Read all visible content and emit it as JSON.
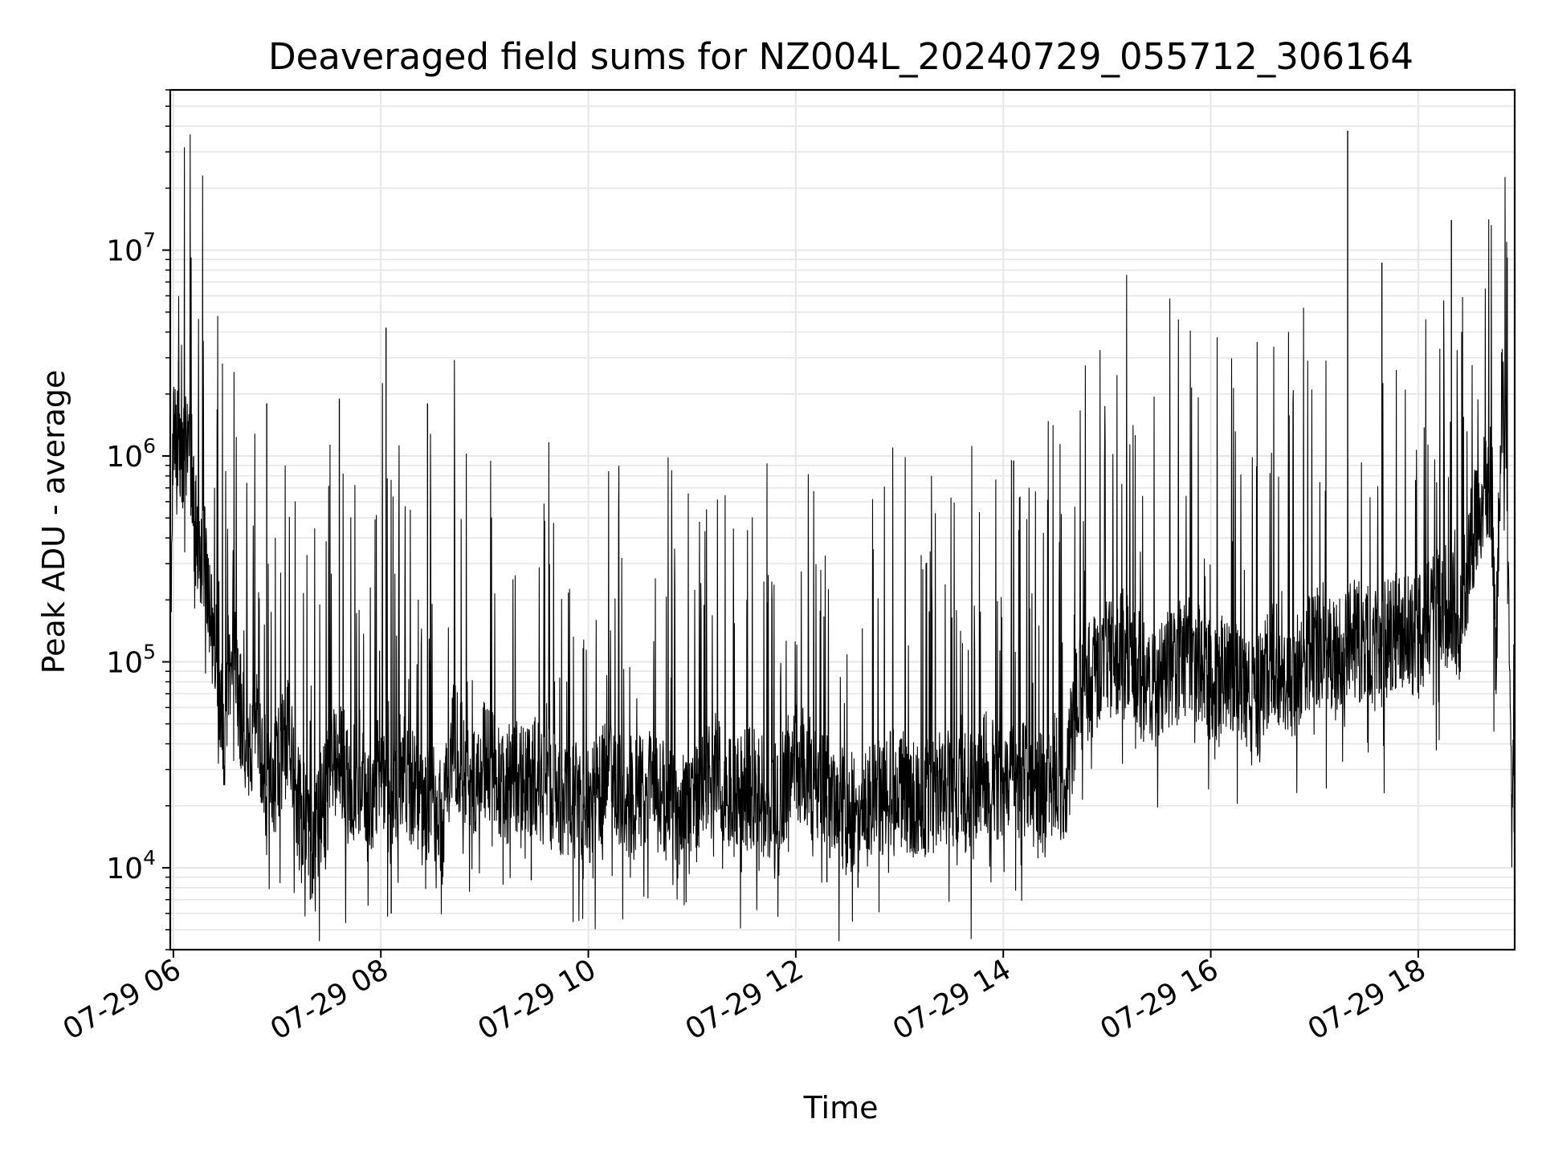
{
  "chart_data": {
    "type": "line",
    "title": "Deaveraged field sums for NZ004L_20240729_055712_306164",
    "xlabel": "Time",
    "ylabel": "Peak ADU - average",
    "yscale": "log",
    "grid": true,
    "legend": "none",
    "line_color": "#000000",
    "grid_color": "#e6e6e6",
    "x_unit": "hours (local time-of-day on 2024-07-29)",
    "xlim": [
      5.97,
      18.93
    ],
    "ylim": [
      4000,
      60000000
    ],
    "x_ticks": [
      {
        "value": 6,
        "label": "07-29 06"
      },
      {
        "value": 8,
        "label": "07-29 08"
      },
      {
        "value": 10,
        "label": "07-29 10"
      },
      {
        "value": 12,
        "label": "07-29 12"
      },
      {
        "value": 14,
        "label": "07-29 14"
      },
      {
        "value": 16,
        "label": "07-29 16"
      },
      {
        "value": 18,
        "label": "07-29 18"
      }
    ],
    "y_ticks": [
      {
        "value": 10000,
        "base": "10",
        "exp": "4"
      },
      {
        "value": 100000,
        "base": "10",
        "exp": "5"
      },
      {
        "value": 1000000,
        "base": "10",
        "exp": "6"
      },
      {
        "value": 10000000,
        "base": "10",
        "exp": "7"
      }
    ],
    "series": [
      {
        "x": [
          5.98,
          6.0,
          6.05,
          6.1,
          6.15,
          6.2,
          6.3,
          6.4,
          6.45,
          6.5,
          6.55,
          6.6,
          6.7,
          6.8,
          6.9,
          7.0,
          7.1,
          7.2,
          7.3,
          7.35,
          7.4,
          7.5,
          7.6,
          7.7,
          7.8,
          7.9,
          8.0,
          8.05,
          8.1,
          8.2,
          8.3,
          8.4,
          8.5,
          8.6,
          8.7,
          8.8,
          8.9,
          9.0,
          9.2,
          9.4,
          9.6,
          9.8,
          10.0,
          10.2,
          10.4,
          10.6,
          10.8,
          11.0,
          11.2,
          11.4,
          11.6,
          11.8,
          12.0,
          12.2,
          12.4,
          12.6,
          12.8,
          13.0,
          13.2,
          13.4,
          13.6,
          13.8,
          14.0,
          14.2,
          14.4,
          14.5,
          14.6,
          14.7,
          14.8,
          15.0,
          15.2,
          15.4,
          15.6,
          15.8,
          16.0,
          16.2,
          16.4,
          16.6,
          16.8,
          17.0,
          17.2,
          17.4,
          17.6,
          17.8,
          18.0,
          18.2,
          18.4,
          18.5,
          18.6,
          18.7,
          18.75,
          18.8,
          18.85,
          18.9,
          18.93
        ],
        "y": [
          150000,
          1700000,
          1200000,
          900000,
          1500000,
          500000,
          300000,
          120000,
          70000,
          40000,
          150000,
          90000,
          35000,
          60000,
          25000,
          30000,
          45000,
          20000,
          15000,
          13000,
          18000,
          25000,
          40000,
          22000,
          30000,
          18000,
          35000,
          25000,
          20000,
          30000,
          25000,
          18000,
          22000,
          16000,
          45000,
          30000,
          28000,
          35000,
          25000,
          30000,
          24000,
          22000,
          20000,
          28000,
          22000,
          25000,
          20000,
          18000,
          30000,
          22000,
          25000,
          20000,
          35000,
          25000,
          20000,
          18000,
          22000,
          25000,
          20000,
          25000,
          22000,
          30000,
          25000,
          28000,
          22000,
          30000,
          25000,
          60000,
          80000,
          100000,
          120000,
          70000,
          90000,
          110000,
          80000,
          90000,
          60000,
          100000,
          85000,
          120000,
          100000,
          130000,
          110000,
          150000,
          130000,
          200000,
          160000,
          350000,
          600000,
          800000,
          90000,
          2000000,
          1000000,
          30000,
          20000
        ]
      }
    ],
    "spikes": [
      {
        "x": 6.05,
        "y": 2900000
      },
      {
        "x": 6.9,
        "y": 1800000
      },
      {
        "x": 7.6,
        "y": 1900000
      },
      {
        "x": 8.05,
        "y": 4200000
      },
      {
        "x": 8.45,
        "y": 1800000
      },
      {
        "x": 14.1,
        "y": 950000
      },
      {
        "x": 17.32,
        "y": 38000000
      },
      {
        "x": 17.65,
        "y": 8700000
      },
      {
        "x": 18.32,
        "y": 14000000
      },
      {
        "x": 18.42,
        "y": 4000000
      },
      {
        "x": 7.32,
        "y": 7000
      },
      {
        "x": 8.1,
        "y": 6000
      },
      {
        "x": 12.6,
        "y": 8000
      },
      {
        "x": 12.3,
        "y": 8500
      },
      {
        "x": 9.45,
        "y": 8700
      },
      {
        "x": 9.95,
        "y": 8800
      }
    ]
  }
}
